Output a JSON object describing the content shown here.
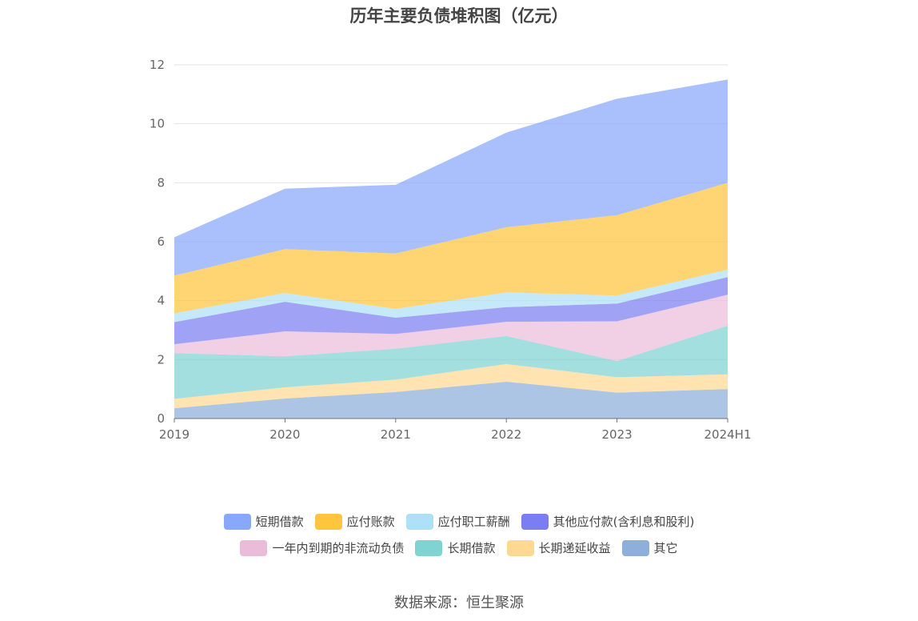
{
  "title": "历年主要负债堆积图（亿元）",
  "source": "数据来源：恒生聚源",
  "chart_data": {
    "type": "area",
    "stacked": true,
    "title": "历年主要负债堆积图（亿元）",
    "x": [
      "2019",
      "2020",
      "2021",
      "2022",
      "2023",
      "2024H1"
    ],
    "ylim": [
      0,
      12
    ],
    "yticks": [
      0,
      2,
      4,
      6,
      8,
      10,
      12
    ],
    "grid": true,
    "legend_position": "bottom",
    "series": [
      {
        "name": "其它",
        "color": "#8eaedb",
        "values": [
          0.35,
          0.68,
          0.9,
          1.25,
          0.88,
          1.0
        ]
      },
      {
        "name": "长期递延收益",
        "color": "#ffd892",
        "values": [
          0.32,
          0.38,
          0.42,
          0.6,
          0.52,
          0.5
        ]
      },
      {
        "name": "长期借款",
        "color": "#7fd3d1",
        "values": [
          1.55,
          1.05,
          1.05,
          0.95,
          0.55,
          1.65
        ]
      },
      {
        "name": "一年内到期的非流动负债",
        "color": "#ebbcda",
        "values": [
          0.3,
          0.85,
          0.5,
          0.48,
          1.35,
          1.05
        ]
      },
      {
        "name": "其他应付款(含利息和股利)",
        "color": "#7b7ef3",
        "values": [
          0.75,
          1.0,
          0.55,
          0.5,
          0.6,
          0.6
        ]
      },
      {
        "name": "应付职工薪酬",
        "color": "#aee0f7",
        "values": [
          0.3,
          0.3,
          0.3,
          0.5,
          0.27,
          0.25
        ]
      },
      {
        "name": "应付账款",
        "color": "#ffc53d",
        "values": [
          1.28,
          1.49,
          1.88,
          2.21,
          2.73,
          2.95
        ]
      },
      {
        "name": "短期借款",
        "color": "#88a8fb",
        "values": [
          1.3,
          2.05,
          2.33,
          3.21,
          3.95,
          3.5
        ]
      }
    ]
  },
  "legend": {
    "row1": [
      "短期借款",
      "应付账款",
      "应付职工薪酬",
      "其他应付款(含利息和股利)"
    ],
    "row2": [
      "一年内到期的非流动负债",
      "长期借款",
      "长期递延收益",
      "其它"
    ]
  }
}
